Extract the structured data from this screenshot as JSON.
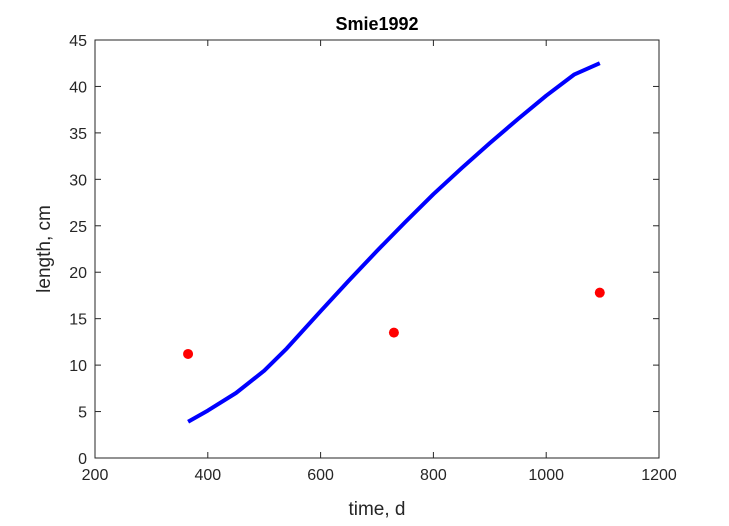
{
  "chart_data": {
    "type": "line",
    "title": "Smie1992",
    "xlabel": "time, d",
    "ylabel": "length, cm",
    "xlim": [
      200,
      1200
    ],
    "ylim": [
      0,
      45
    ],
    "xticks": [
      200,
      400,
      600,
      800,
      1000,
      1200
    ],
    "yticks": [
      0,
      5,
      10,
      15,
      20,
      25,
      30,
      35,
      40,
      45
    ],
    "grid": false,
    "legend": "none",
    "series": [
      {
        "type": "line",
        "color": "#0000ff",
        "x": [
          365,
          400,
          450,
          500,
          540,
          600,
          650,
          700,
          750,
          800,
          850,
          900,
          950,
          1000,
          1050,
          1095
        ],
        "y": [
          3.9,
          5.1,
          7.0,
          9.4,
          11.8,
          15.8,
          19.1,
          22.3,
          25.4,
          28.4,
          31.2,
          33.9,
          36.5,
          39.0,
          41.3,
          42.5
        ]
      },
      {
        "type": "scatter",
        "color": "#ff0000",
        "x": [
          365,
          730,
          1095
        ],
        "y": [
          11.2,
          13.5,
          17.8
        ]
      }
    ]
  }
}
